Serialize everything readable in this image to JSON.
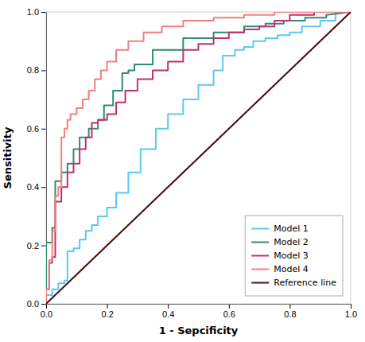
{
  "chart_data": {
    "type": "line",
    "xlabel": "1 - Sepcificity",
    "ylabel": "Sensitivity",
    "xlim": [
      0.0,
      1.0
    ],
    "ylim": [
      0.0,
      1.0
    ],
    "xticks": [
      {
        "value": 0.0,
        "label": "0.0"
      },
      0.2,
      0.4,
      0.6,
      0.8,
      {
        "value": 1.0,
        "label": "1.0"
      }
    ],
    "yticks": [
      {
        "value": 0.0,
        "label": "0.0"
      },
      0.2,
      0.4,
      0.6,
      0.8,
      {
        "value": 1.0,
        "label": "1.0"
      }
    ],
    "legend": "lower right",
    "grid": false,
    "series": [
      {
        "name": "Model 1",
        "color": "#5BC8F5",
        "x": [
          0.0,
          0.0,
          0.02,
          0.02,
          0.04,
          0.04,
          0.06,
          0.06,
          0.07,
          0.07,
          0.09,
          0.09,
          0.11,
          0.11,
          0.13,
          0.13,
          0.15,
          0.15,
          0.17,
          0.17,
          0.2,
          0.2,
          0.23,
          0.23,
          0.27,
          0.27,
          0.31,
          0.31,
          0.36,
          0.36,
          0.4,
          0.4,
          0.45,
          0.45,
          0.5,
          0.5,
          0.55,
          0.55,
          0.58,
          0.58,
          0.62,
          0.62,
          0.65,
          0.65,
          0.68,
          0.68,
          0.72,
          0.72,
          0.76,
          0.76,
          0.8,
          0.8,
          0.84,
          0.84,
          0.9,
          0.9,
          0.95,
          0.95,
          1.0
        ],
        "values": [
          0.0,
          0.03,
          0.03,
          0.05,
          0.05,
          0.07,
          0.07,
          0.08,
          0.08,
          0.18,
          0.18,
          0.19,
          0.19,
          0.22,
          0.22,
          0.25,
          0.25,
          0.27,
          0.27,
          0.3,
          0.3,
          0.33,
          0.33,
          0.38,
          0.38,
          0.45,
          0.45,
          0.53,
          0.53,
          0.6,
          0.6,
          0.65,
          0.65,
          0.7,
          0.7,
          0.75,
          0.75,
          0.8,
          0.8,
          0.85,
          0.85,
          0.87,
          0.87,
          0.88,
          0.88,
          0.9,
          0.9,
          0.91,
          0.91,
          0.92,
          0.92,
          0.93,
          0.93,
          0.95,
          0.95,
          0.97,
          0.97,
          1.0,
          1.0
        ]
      },
      {
        "name": "Model 2",
        "color": "#2E8B74",
        "x": [
          0.0,
          0.0,
          0.02,
          0.02,
          0.03,
          0.03,
          0.05,
          0.05,
          0.07,
          0.07,
          0.09,
          0.09,
          0.11,
          0.11,
          0.14,
          0.14,
          0.17,
          0.17,
          0.19,
          0.19,
          0.22,
          0.22,
          0.25,
          0.25,
          0.27,
          0.27,
          0.29,
          0.29,
          0.35,
          0.35,
          0.45,
          0.45,
          0.55,
          0.55,
          0.65,
          0.65,
          0.72,
          0.72,
          0.78,
          0.78,
          0.85,
          0.85,
          0.92,
          0.92,
          1.0
        ],
        "values": [
          0.0,
          0.21,
          0.21,
          0.26,
          0.26,
          0.42,
          0.42,
          0.45,
          0.45,
          0.48,
          0.48,
          0.53,
          0.53,
          0.57,
          0.57,
          0.6,
          0.6,
          0.63,
          0.63,
          0.68,
          0.68,
          0.73,
          0.73,
          0.79,
          0.79,
          0.8,
          0.8,
          0.82,
          0.82,
          0.87,
          0.87,
          0.91,
          0.91,
          0.93,
          0.93,
          0.95,
          0.95,
          0.96,
          0.96,
          0.97,
          0.97,
          0.98,
          0.98,
          0.99,
          1.0
        ]
      },
      {
        "name": "Model 3",
        "color": "#C03070",
        "x": [
          0.0,
          0.0,
          0.01,
          0.01,
          0.02,
          0.02,
          0.03,
          0.03,
          0.05,
          0.05,
          0.07,
          0.07,
          0.09,
          0.09,
          0.11,
          0.11,
          0.13,
          0.13,
          0.15,
          0.15,
          0.17,
          0.17,
          0.2,
          0.2,
          0.23,
          0.23,
          0.26,
          0.26,
          0.3,
          0.3,
          0.35,
          0.35,
          0.4,
          0.4,
          0.45,
          0.45,
          0.5,
          0.5,
          0.55,
          0.55,
          0.6,
          0.6,
          0.65,
          0.65,
          0.7,
          0.7,
          0.75,
          0.75,
          0.8,
          0.8,
          0.88,
          0.88,
          0.95,
          0.95,
          1.0
        ],
        "values": [
          0.0,
          0.05,
          0.05,
          0.14,
          0.14,
          0.16,
          0.16,
          0.35,
          0.35,
          0.4,
          0.4,
          0.45,
          0.45,
          0.48,
          0.48,
          0.53,
          0.53,
          0.57,
          0.57,
          0.62,
          0.62,
          0.63,
          0.63,
          0.65,
          0.65,
          0.69,
          0.69,
          0.73,
          0.73,
          0.77,
          0.77,
          0.8,
          0.8,
          0.83,
          0.83,
          0.87,
          0.87,
          0.89,
          0.89,
          0.91,
          0.91,
          0.93,
          0.93,
          0.94,
          0.94,
          0.95,
          0.95,
          0.97,
          0.97,
          0.99,
          0.99,
          1.0,
          1.0,
          1.0,
          1.0
        ]
      },
      {
        "name": "Model 4",
        "color": "#F08080",
        "x": [
          0.0,
          0.0,
          0.01,
          0.01,
          0.02,
          0.02,
          0.03,
          0.03,
          0.04,
          0.04,
          0.05,
          0.05,
          0.06,
          0.06,
          0.07,
          0.07,
          0.08,
          0.08,
          0.1,
          0.1,
          0.12,
          0.12,
          0.14,
          0.14,
          0.16,
          0.16,
          0.18,
          0.18,
          0.2,
          0.2,
          0.23,
          0.23,
          0.27,
          0.27,
          0.32,
          0.32,
          0.38,
          0.38,
          0.45,
          0.45,
          0.55,
          0.55,
          0.65,
          0.65,
          0.75,
          0.75,
          0.85,
          0.85,
          0.95,
          0.95,
          1.0
        ],
        "values": [
          0.0,
          0.05,
          0.05,
          0.15,
          0.15,
          0.25,
          0.25,
          0.37,
          0.37,
          0.4,
          0.4,
          0.57,
          0.57,
          0.6,
          0.6,
          0.63,
          0.63,
          0.65,
          0.65,
          0.67,
          0.67,
          0.7,
          0.7,
          0.73,
          0.73,
          0.77,
          0.77,
          0.8,
          0.8,
          0.83,
          0.83,
          0.87,
          0.87,
          0.9,
          0.9,
          0.93,
          0.93,
          0.95,
          0.95,
          0.97,
          0.97,
          0.98,
          0.98,
          0.99,
          0.99,
          1.0,
          1.0,
          1.0,
          1.0,
          1.0,
          1.0
        ]
      },
      {
        "name": "Reference line",
        "color": "#4A0E0E",
        "x": [
          0,
          1
        ],
        "values": [
          0,
          1
        ]
      }
    ]
  }
}
